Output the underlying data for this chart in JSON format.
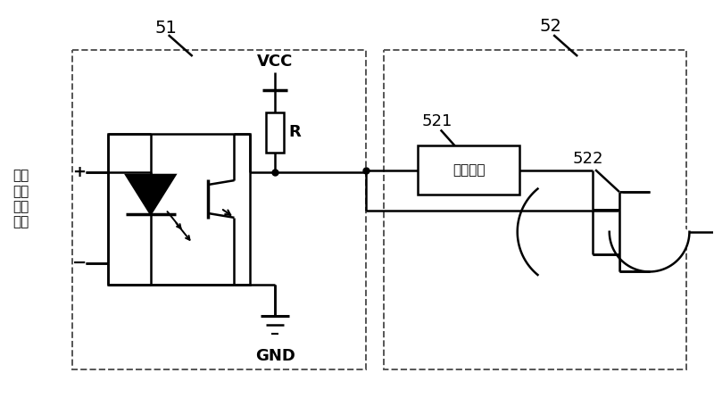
{
  "bg_color": "#ffffff",
  "lc": "#000000",
  "dash_color": "#555555",
  "lw": 1.8,
  "lw_thick": 2.5,
  "lw_dash": 1.4,
  "fig_w": 8.0,
  "fig_h": 4.46,
  "dpi": 100,
  "label_51": "51",
  "label_52": "52",
  "label_521": "521",
  "label_522": "522",
  "label_vcc": "VCC",
  "label_gnd": "GND",
  "label_r": "R",
  "label_input": "飞轮\n转速\n脉冲\n信号",
  "label_delay": "延时芯片",
  "fs_large": 14,
  "fs_med": 13,
  "fs_small": 11
}
